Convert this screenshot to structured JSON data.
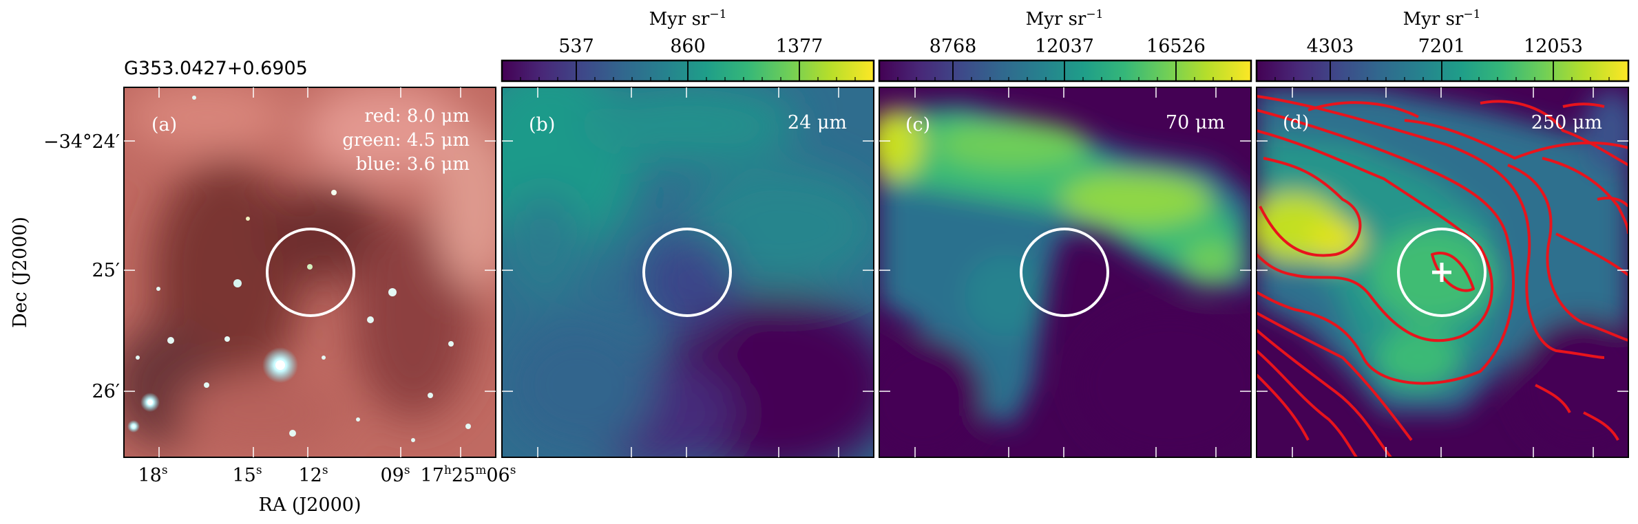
{
  "source_name": "G353.0427+0.6905",
  "axes": {
    "ylabel": "Dec (J2000)",
    "xlabel": "RA (J2000)",
    "dec_ticks": [
      {
        "main": "−34°24′"
      },
      {
        "main": "25′"
      },
      {
        "main": "26′"
      }
    ],
    "ra_ticks": [
      {
        "base": "18",
        "sup": "s"
      },
      {
        "base": "15",
        "sup": "s"
      },
      {
        "base": "12",
        "sup": "s"
      },
      {
        "base": "09",
        "sup": "s"
      },
      {
        "base": "17",
        "sup": "h",
        "base2": "25",
        "sup2": "m",
        "base3": "06",
        "sup3": "s"
      }
    ]
  },
  "panels": [
    {
      "letter": "(a)",
      "type": "rgb",
      "legend": [
        "red: 8.0 μm",
        "green: 4.5 μm",
        "blue: 3.6 μm"
      ]
    },
    {
      "letter": "(b)",
      "band": "24 μm",
      "colorbar": {
        "unit": "Myr sr",
        "unit_exp": "−1",
        "ticks": [
          "537",
          "860",
          "1377"
        ]
      }
    },
    {
      "letter": "(c)",
      "band": "70 μm",
      "colorbar": {
        "unit": "Myr sr",
        "unit_exp": "−1",
        "ticks": [
          "8768",
          "12037",
          "16526"
        ]
      }
    },
    {
      "letter": "(d)",
      "band": "250 μm",
      "colorbar": {
        "unit": "Myr sr",
        "unit_exp": "−1",
        "ticks": [
          "4303",
          "7201",
          "12053"
        ]
      }
    }
  ],
  "colors": {
    "colormap": [
      "#440154",
      "#482878",
      "#3e4989",
      "#31688e",
      "#26828e",
      "#1f9e89",
      "#35b779",
      "#6ece58",
      "#b5de2b",
      "#fde725"
    ],
    "contour": "#e8141c",
    "marker": "#ffffff"
  }
}
